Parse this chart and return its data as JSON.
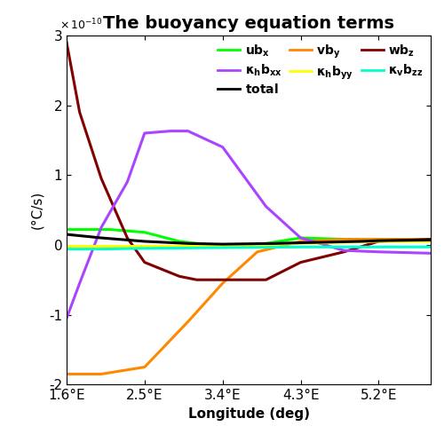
{
  "title": "The buoyancy equation terms",
  "xlabel": "Longitude (deg)",
  "ylabel": "(°C/s)",
  "ylim": [
    -2e-10,
    3e-10
  ],
  "xlim": [
    1.6,
    5.8
  ],
  "xticks": [
    1.6,
    2.5,
    3.4,
    4.3,
    5.2
  ],
  "xtick_labels": [
    "1.6°E",
    "2.5°E",
    "3.4°E",
    "4.3°E",
    "5.2°E"
  ],
  "yticks": [
    -2e-10,
    -1e-10,
    0,
    1e-10,
    2e-10,
    3e-10
  ],
  "ytick_labels": [
    "-2",
    "-1",
    "0",
    "1",
    "2",
    "3"
  ],
  "series": {
    "ubx": {
      "color": "#00ff00",
      "x": [
        1.6,
        2.1,
        2.5,
        2.9,
        3.4,
        3.9,
        4.3,
        4.8,
        5.2,
        5.8
      ],
      "y": [
        2.2e-11,
        2.2e-11,
        1.8e-11,
        5e-12,
        -2e-12,
        2e-12,
        1e-11,
        8e-12,
        8e-12,
        8e-12
      ]
    },
    "vby": {
      "color": "#ff8800",
      "x": [
        1.6,
        2.0,
        2.5,
        3.0,
        3.4,
        3.8,
        4.3,
        4.8,
        5.2,
        5.8
      ],
      "y": [
        -1.85e-10,
        -1.85e-10,
        -1.75e-10,
        -1.1e-10,
        -5.5e-11,
        -1e-11,
        5e-12,
        8e-12,
        8e-12,
        8e-12
      ]
    },
    "wbz": {
      "color": "#800000",
      "x": [
        1.6,
        1.75,
        2.0,
        2.3,
        2.5,
        2.9,
        3.1,
        3.4,
        3.9,
        4.3,
        4.8,
        5.2,
        5.8
      ],
      "y": [
        2.9e-10,
        1.9e-10,
        9.5e-11,
        1e-11,
        -2.5e-11,
        -4.5e-11,
        -5e-11,
        -5e-11,
        -5e-11,
        -2.5e-11,
        -1e-11,
        5e-12,
        8e-12
      ]
    },
    "khbxx": {
      "color": "#aa44ff",
      "x": [
        1.6,
        1.75,
        2.0,
        2.3,
        2.5,
        2.8,
        3.0,
        3.4,
        3.9,
        4.3,
        4.8,
        5.2,
        5.8
      ],
      "y": [
        -1.05e-10,
        -5.5e-11,
        2.5e-11,
        9e-11,
        1.6e-10,
        1.63e-10,
        1.63e-10,
        1.4e-10,
        5.5e-11,
        1e-11,
        -8e-12,
        -1e-11,
        -1.2e-11
      ]
    },
    "khbyy": {
      "color": "#ffff00",
      "x": [
        1.6,
        2.5,
        3.4,
        4.3,
        5.2,
        5.8
      ],
      "y": [
        -2e-12,
        -2e-12,
        -2e-12,
        2e-12,
        5e-12,
        5e-12
      ]
    },
    "kvbzz": {
      "color": "#00ffcc",
      "x": [
        1.6,
        2.0,
        2.5,
        3.4,
        4.3,
        5.2,
        5.8
      ],
      "y": [
        -6e-12,
        -6e-12,
        -5e-12,
        -4e-12,
        -3e-12,
        -3e-12,
        -3e-12
      ]
    },
    "total": {
      "color": "#000000",
      "x": [
        1.6,
        2.0,
        2.5,
        3.0,
        3.4,
        4.0,
        4.3,
        5.0,
        5.2,
        5.8
      ],
      "y": [
        1.5e-11,
        1e-11,
        5e-12,
        2e-12,
        1e-12,
        2e-12,
        3e-12,
        5e-12,
        6e-12,
        7e-12
      ]
    }
  },
  "linewidth": 2.2,
  "background_color": "#ffffff",
  "legend_fontsize": 10,
  "title_fontsize": 14,
  "axis_fontsize": 11,
  "tick_fontsize": 11
}
